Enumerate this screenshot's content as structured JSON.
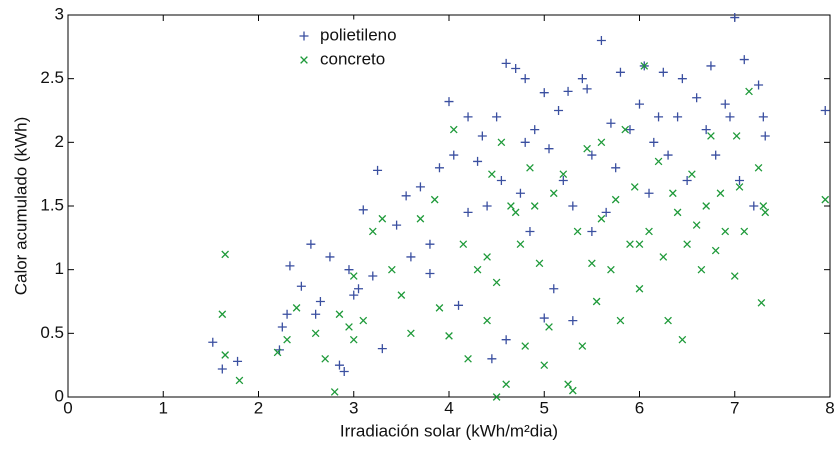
{
  "chart_data": {
    "type": "scatter",
    "xlabel": "Irradiación solar (kWh/m²dia)",
    "ylabel": "Calor acumulado (kWh)",
    "xlim": [
      0,
      8
    ],
    "ylim": [
      0,
      3
    ],
    "xticks": [
      0,
      1,
      2,
      3,
      4,
      5,
      6,
      7,
      8
    ],
    "yticks": [
      0,
      0.5,
      1,
      1.5,
      2,
      2.5,
      3
    ],
    "legend": "upper-left",
    "series": [
      {
        "name": "polietileno",
        "color": "#3a4fa0",
        "marker": "plus",
        "x": [
          1.52,
          1.62,
          1.78,
          2.22,
          2.25,
          2.3,
          2.33,
          2.45,
          2.55,
          2.6,
          2.65,
          2.75,
          2.85,
          2.9,
          2.95,
          3.0,
          3.05,
          3.1,
          3.2,
          3.25,
          3.3,
          3.45,
          3.55,
          3.6,
          3.7,
          3.8,
          3.9,
          4.0,
          4.05,
          4.1,
          4.2,
          4.3,
          4.35,
          4.4,
          4.45,
          4.5,
          4.55,
          4.6,
          4.7,
          4.75,
          4.8,
          4.85,
          4.9,
          5.0,
          5.0,
          5.05,
          5.15,
          5.2,
          5.25,
          5.3,
          5.4,
          5.45,
          5.5,
          5.6,
          5.65,
          5.7,
          5.75,
          5.8,
          5.9,
          6.0,
          6.05,
          6.1,
          6.15,
          6.25,
          6.3,
          6.4,
          6.45,
          6.5,
          6.6,
          6.7,
          6.75,
          6.8,
          6.9,
          6.95,
          7.0,
          7.05,
          7.1,
          7.2,
          7.25,
          7.3,
          7.32,
          7.95,
          5.3,
          5.5,
          4.2,
          3.8,
          4.8,
          6.2,
          4.6,
          5.1
        ],
        "values": [
          0.43,
          0.22,
          0.28,
          0.37,
          0.55,
          0.65,
          1.03,
          0.87,
          1.2,
          0.65,
          0.75,
          1.1,
          0.25,
          0.2,
          1.0,
          0.8,
          0.85,
          1.47,
          0.95,
          1.78,
          0.38,
          1.35,
          1.58,
          1.1,
          1.65,
          1.2,
          1.8,
          2.32,
          1.9,
          0.72,
          1.45,
          1.85,
          2.05,
          1.5,
          0.3,
          2.2,
          1.7,
          2.62,
          2.58,
          1.6,
          2.0,
          1.3,
          2.1,
          2.39,
          0.62,
          1.95,
          2.25,
          1.7,
          2.4,
          1.5,
          2.5,
          2.42,
          1.9,
          2.8,
          1.45,
          2.15,
          1.8,
          2.55,
          2.1,
          2.3,
          2.6,
          1.6,
          2.0,
          2.55,
          1.9,
          2.2,
          2.5,
          1.7,
          2.35,
          2.1,
          2.6,
          1.9,
          2.3,
          2.2,
          2.98,
          1.7,
          2.65,
          1.5,
          2.45,
          2.2,
          2.05,
          2.25,
          0.6,
          1.3,
          2.2,
          0.97,
          2.5,
          2.2,
          0.45,
          0.85
        ]
      },
      {
        "name": "concreto",
        "color": "#1f9a3a",
        "marker": "x",
        "x": [
          1.65,
          1.62,
          1.65,
          1.8,
          2.2,
          2.3,
          2.4,
          2.6,
          2.7,
          2.8,
          2.85,
          2.95,
          3.0,
          3.1,
          3.2,
          3.3,
          3.4,
          3.5,
          3.6,
          3.7,
          3.85,
          3.9,
          4.0,
          4.05,
          4.15,
          4.2,
          4.3,
          4.4,
          4.45,
          4.5,
          4.55,
          4.6,
          4.65,
          4.7,
          4.75,
          4.8,
          4.85,
          4.9,
          4.95,
          5.0,
          5.05,
          5.1,
          5.2,
          5.25,
          5.3,
          5.35,
          5.4,
          5.45,
          5.5,
          5.55,
          5.6,
          5.7,
          5.75,
          5.8,
          5.85,
          5.9,
          5.95,
          6.0,
          6.05,
          6.1,
          6.2,
          6.25,
          6.3,
          6.35,
          6.4,
          6.45,
          6.5,
          6.55,
          6.6,
          6.65,
          6.7,
          6.75,
          6.8,
          6.85,
          6.9,
          7.0,
          7.02,
          7.05,
          7.1,
          7.15,
          7.25,
          7.28,
          7.3,
          7.32,
          7.95,
          4.5,
          4.4,
          5.6,
          6.0,
          3.0
        ],
        "values": [
          1.12,
          0.65,
          0.33,
          0.13,
          0.35,
          0.45,
          0.7,
          0.5,
          0.3,
          0.04,
          0.65,
          0.55,
          0.45,
          0.6,
          1.3,
          1.4,
          1.0,
          0.8,
          0.5,
          1.4,
          1.55,
          0.7,
          0.48,
          2.1,
          1.2,
          0.3,
          1.0,
          0.6,
          1.75,
          0.9,
          2.0,
          0.1,
          1.5,
          1.45,
          1.2,
          0.4,
          1.8,
          1.5,
          1.05,
          0.25,
          0.55,
          1.6,
          1.75,
          0.1,
          0.05,
          1.3,
          0.4,
          1.95,
          1.05,
          0.75,
          2.0,
          1.0,
          1.55,
          0.6,
          2.1,
          1.2,
          1.65,
          0.85,
          2.6,
          1.3,
          1.85,
          1.1,
          0.6,
          1.6,
          1.45,
          0.45,
          1.2,
          1.75,
          1.35,
          1.0,
          1.5,
          2.05,
          1.15,
          1.6,
          1.3,
          0.95,
          2.05,
          1.65,
          1.3,
          2.4,
          1.8,
          0.74,
          1.5,
          1.45,
          1.55,
          0.0,
          1.1,
          1.4,
          1.2,
          0.95
        ]
      }
    ]
  }
}
